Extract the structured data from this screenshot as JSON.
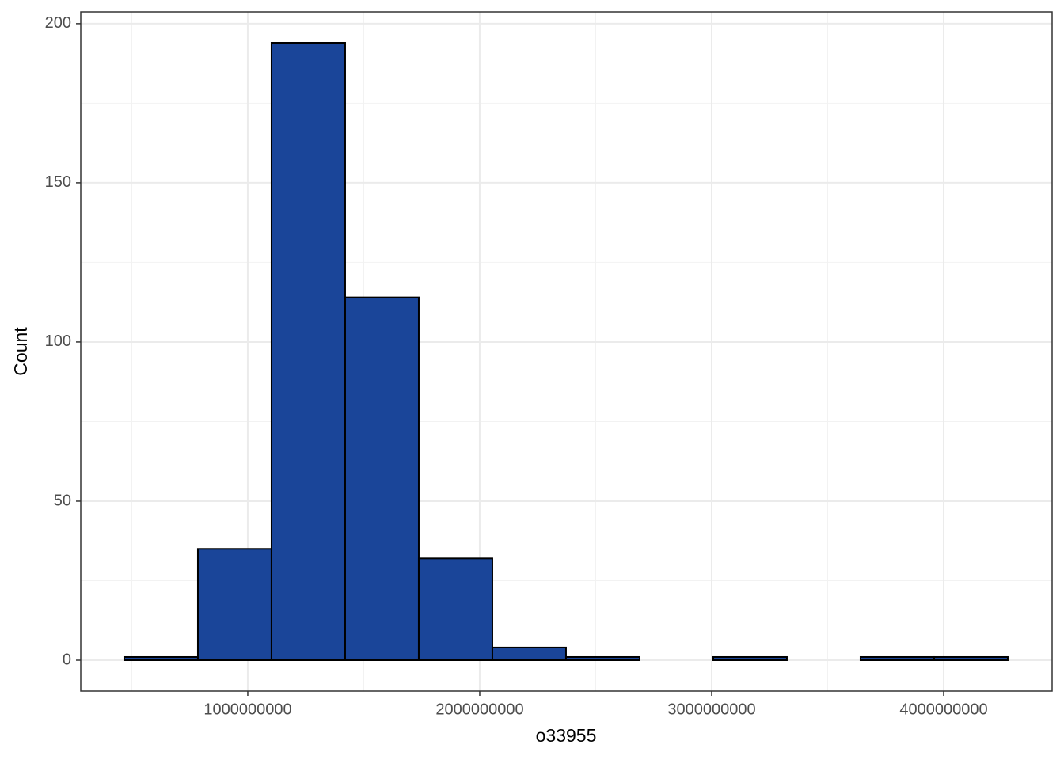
{
  "chart_data": {
    "type": "histogram",
    "x_label": "o33955",
    "y_label": "Count",
    "bins": [
      467600000,
      785000000,
      1102400000,
      1419800000,
      1737200000,
      2054600000,
      2372000000,
      2689400000,
      3006800000,
      3324200000,
      3641600000,
      3959000000,
      4276400000
    ],
    "counts": [
      1,
      35,
      194,
      114,
      32,
      4,
      1,
      0,
      1,
      0,
      1,
      1
    ],
    "color": "#1a4599",
    "edge_color": "#000000",
    "xlim": [
      280000000,
      4467600000
    ],
    "ylim": [
      -9.7,
      203.7
    ],
    "xticks": [
      1000000000,
      2000000000,
      3000000000,
      4000000000
    ],
    "yticks": [
      0,
      50,
      100,
      150,
      200
    ],
    "x_minor_ticks": [
      500000000,
      1500000000,
      2500000000,
      3500000000
    ],
    "y_minor_ticks": [
      25,
      75,
      125,
      175
    ],
    "grid": true
  }
}
